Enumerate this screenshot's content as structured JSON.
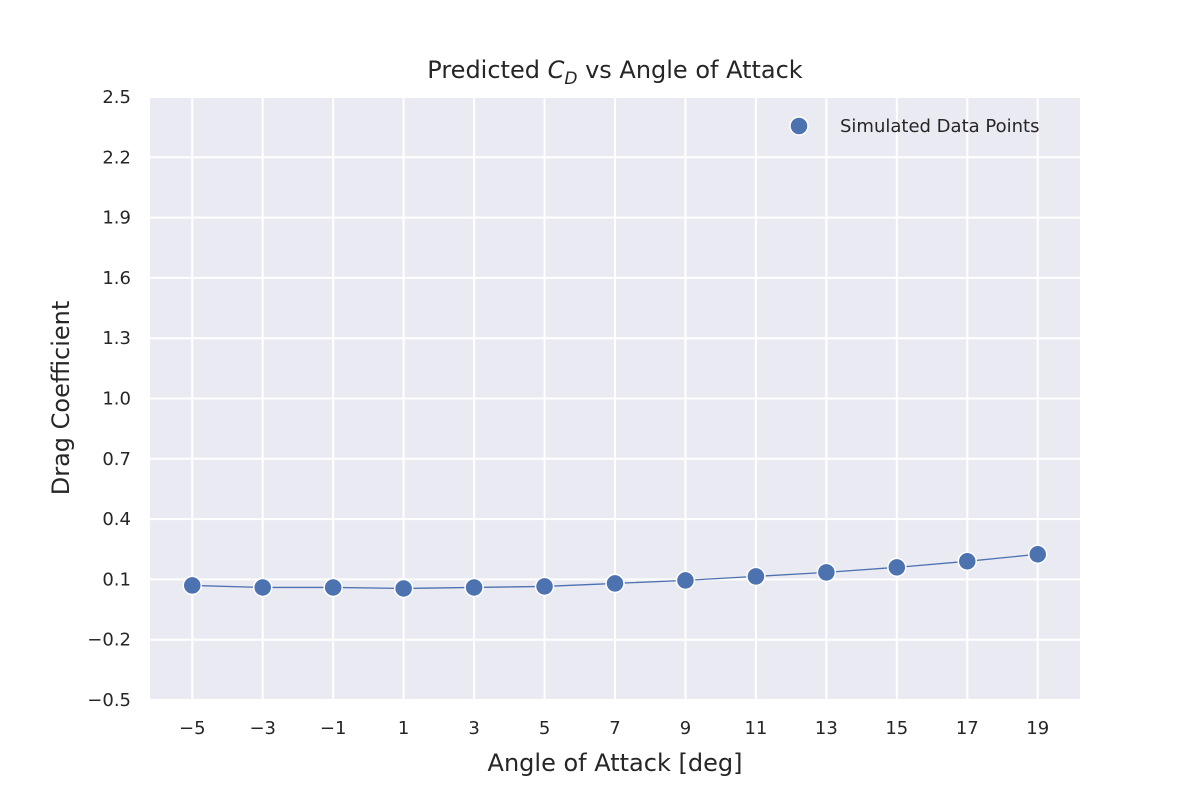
{
  "chart_data": {
    "type": "line",
    "title": {
      "prefix": "Predicted ",
      "symbol": "C",
      "subscript": "D",
      "suffix": " vs Angle of Attack"
    },
    "xlabel": "Angle of Attack [deg]",
    "ylabel": "Drag Coefficient",
    "xlim": [
      -6.2,
      20.2
    ],
    "ylim": [
      -0.5,
      2.5
    ],
    "xticks": [
      -5,
      -3,
      -1,
      1,
      3,
      5,
      7,
      9,
      11,
      13,
      15,
      17,
      19
    ],
    "xtick_labels": [
      "−5",
      "−3",
      "−1",
      "1",
      "3",
      "5",
      "7",
      "9",
      "11",
      "13",
      "15",
      "17",
      "19"
    ],
    "yticks": [
      -0.5,
      -0.2,
      0.1,
      0.4,
      0.7,
      1.0,
      1.3,
      1.6,
      1.9,
      2.2,
      2.5
    ],
    "ytick_labels": [
      "−0.5",
      "−0.2",
      "0.1",
      "0.4",
      "0.7",
      "1.0",
      "1.3",
      "1.6",
      "1.9",
      "2.2",
      "2.5"
    ],
    "grid": true,
    "legend_position": "top-right",
    "series": [
      {
        "name": "Simulated Data Points",
        "color": "#4c72b0",
        "marker": "circle",
        "line": true,
        "x": [
          -5,
          -3,
          -1,
          1,
          3,
          5,
          7,
          9,
          11,
          13,
          15,
          17,
          19
        ],
        "y": [
          0.07,
          0.06,
          0.06,
          0.055,
          0.06,
          0.065,
          0.08,
          0.095,
          0.115,
          0.135,
          0.16,
          0.19,
          0.225
        ]
      }
    ]
  },
  "colors": {
    "plot_background": "#eaeaf2",
    "grid": "#ffffff",
    "text": "#262626"
  }
}
